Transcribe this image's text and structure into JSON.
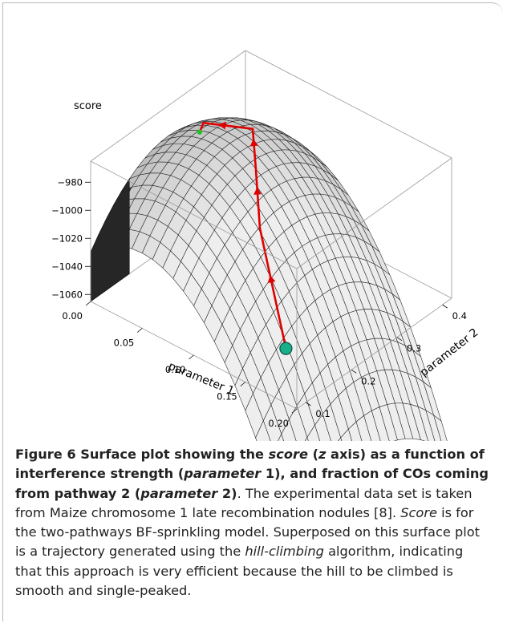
{
  "chart_data": {
    "type": "surface3d",
    "title": "",
    "xlabel": "parameter 1",
    "ylabel": "parameter 2",
    "zlabel": "score",
    "x_ticks": [
      "0.00",
      "0.05",
      "0.10",
      "0.15",
      "0.20"
    ],
    "y_ticks": [
      "0.1",
      "0.2",
      "0.3",
      "0.4"
    ],
    "z_ticks": [
      "−980",
      "−1000",
      "−1020",
      "−1040",
      "−1060"
    ],
    "xlim": [
      0.0,
      0.2
    ],
    "ylim": [
      0.08,
      0.42
    ],
    "zlim": [
      -1065,
      -965
    ],
    "surface": {
      "shape": "smooth single-peaked quadratic surface",
      "peak": {
        "x": 0.05,
        "y": 0.25,
        "z": -968
      },
      "grid_columns": 20,
      "grid_rows": 20,
      "color": "#c8c8c8"
    },
    "trajectory": {
      "algorithm": "hill-climbing",
      "color": "#e00000",
      "points": [
        {
          "x": 0.185,
          "y": 0.09,
          "z": -1030
        },
        {
          "x": 0.12,
          "y": 0.18,
          "z": -990
        },
        {
          "x": 0.085,
          "y": 0.25,
          "z": -976
        },
        {
          "x": 0.06,
          "y": 0.3,
          "z": -970
        },
        {
          "x": 0.03,
          "y": 0.26,
          "z": -968
        },
        {
          "x": 0.035,
          "y": 0.24,
          "z": -968
        }
      ],
      "start_marker_color": "#18b08a",
      "end_marker_color": "#27c027"
    }
  },
  "caption": {
    "fig_label": "Figure 6",
    "bold_1": " Surface plot showing the ",
    "bold_score": "score",
    "bold_2": " (",
    "bold_z": "z",
    "bold_3": " axis) as a function of interference strength (",
    "bold_param": "parameter",
    "bold_4": " 1), and fraction of COs coming from pathway 2 (",
    "bold_param2": "parameter",
    "bold_5": " 2)",
    "text_1": ". The experimental data set is taken from Maize chromosome 1 late recombination nodules [8]. ",
    "score_italic": "Score",
    "text_2": " is for the two-pathways BF-sprinkling model. Superposed on this surface plot is a trajectory generated using the ",
    "hill_climbing": "hill-climbing",
    "text_3": " algorithm, indicating that this approach is very efficient because the hill to be climbed is smooth and single-peaked."
  }
}
